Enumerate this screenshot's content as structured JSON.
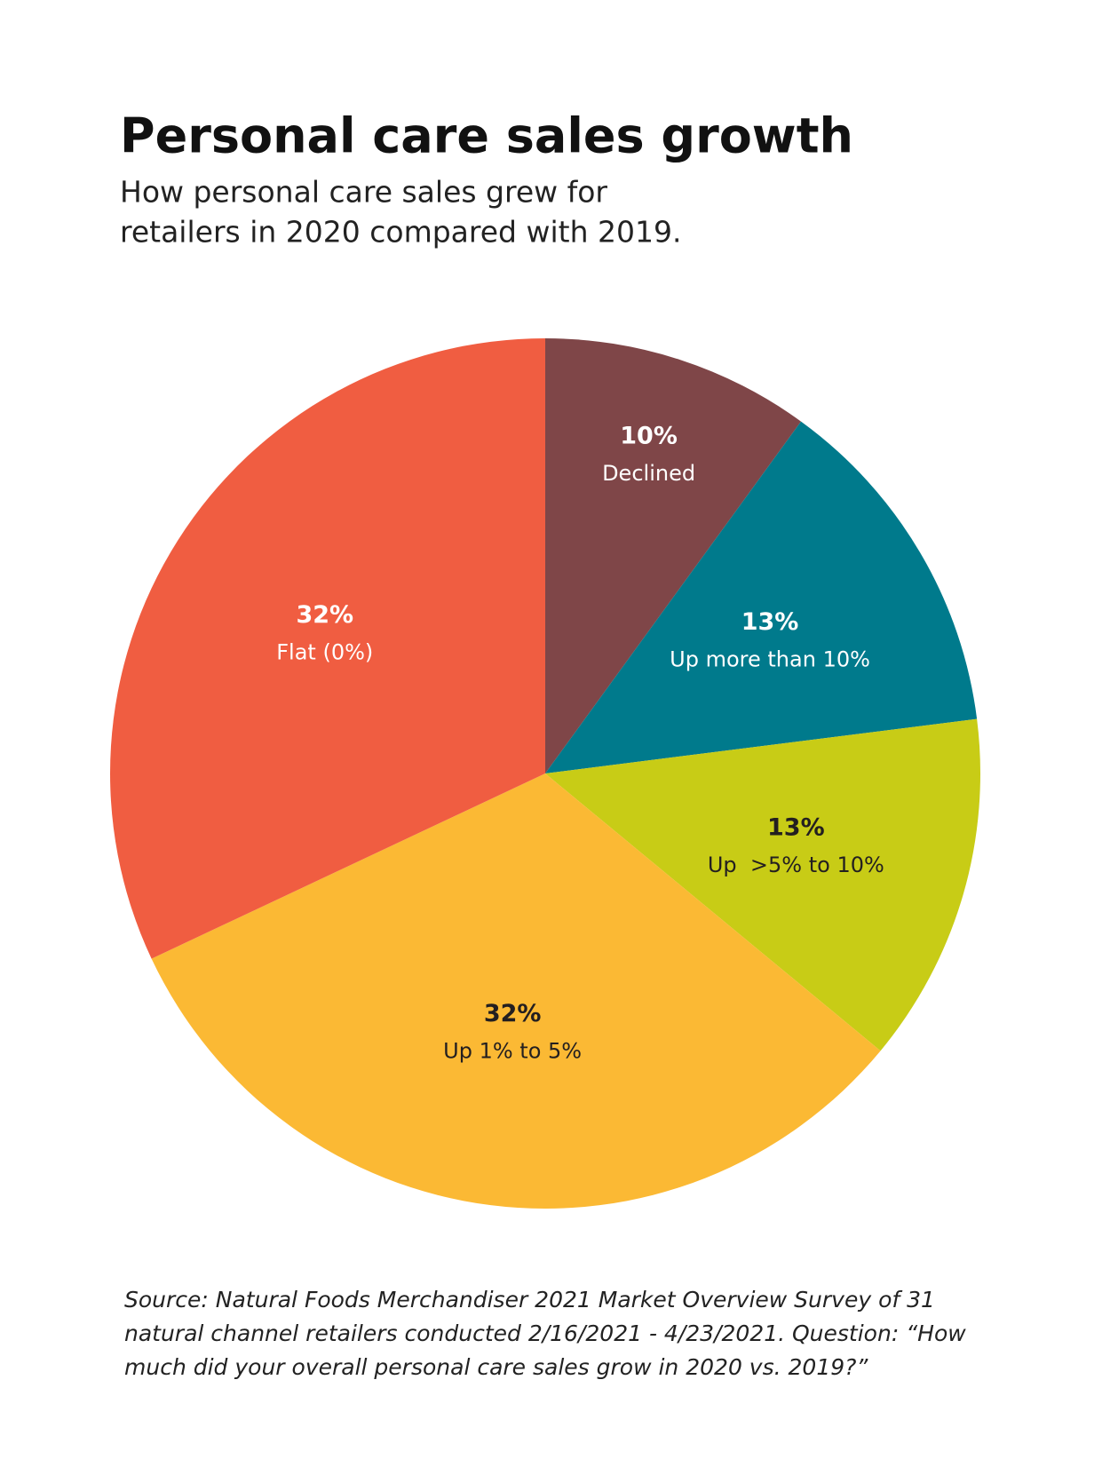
{
  "chart_data": {
    "type": "pie",
    "title": "Personal care sales growth",
    "subtitle": [
      "How personal care sales grew for",
      "retailers in 2020 compared with 2019."
    ],
    "categories": [
      "Declined",
      "Up more than 10%",
      "Up  >5% to 10%",
      "Up 1% to 5%",
      "Flat (0%)"
    ],
    "values": [
      10,
      13,
      13,
      32,
      32
    ],
    "value_labels": [
      "10%",
      "13%",
      "13%",
      "32%",
      "32%"
    ],
    "colors": [
      "#7f4648",
      "#007a8c",
      "#c8cc16",
      "#fbb934",
      "#f05d41"
    ],
    "source": "Source: Natural Foods Merchandiser 2021 Market Overview Survey of 31 natural channel retailers conducted 2/16/2021 - 4/23/2021. Question: “How much did your overall personal care sales grow in 2020 vs. 2019?”"
  }
}
